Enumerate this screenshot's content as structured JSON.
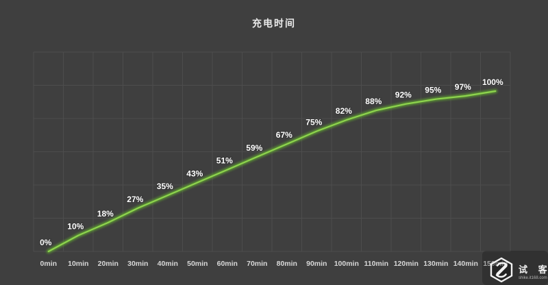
{
  "title": "充电时间",
  "chart_data": {
    "type": "line",
    "title": "充电时间",
    "x": [
      "0min",
      "10min",
      "20min",
      "30min",
      "40min",
      "50min",
      "60min",
      "70min",
      "80min",
      "90min",
      "100min",
      "110min",
      "120min",
      "130min",
      "140min",
      "150min"
    ],
    "series": [
      {
        "name": "充电时间",
        "values": [
          0,
          10,
          18,
          27,
          35,
          43,
          51,
          59,
          67,
          75,
          82,
          88,
          92,
          95,
          97,
          100
        ]
      }
    ],
    "value_suffix": "%",
    "xlabel": "",
    "ylabel": "",
    "ylim": [
      0,
      120
    ],
    "grid": true,
    "legend_position": "none",
    "colors": {
      "background": "#3f3f3f",
      "grid": "#4d4d4d",
      "line": "#8ed44e",
      "line_glow": "#5f9e33",
      "point_label": "#ffffff",
      "tick_label": "#d8d8d8",
      "title": "#eaeaea"
    }
  },
  "watermark": {
    "name": "试 客",
    "url_text": "shike.it168.com"
  }
}
